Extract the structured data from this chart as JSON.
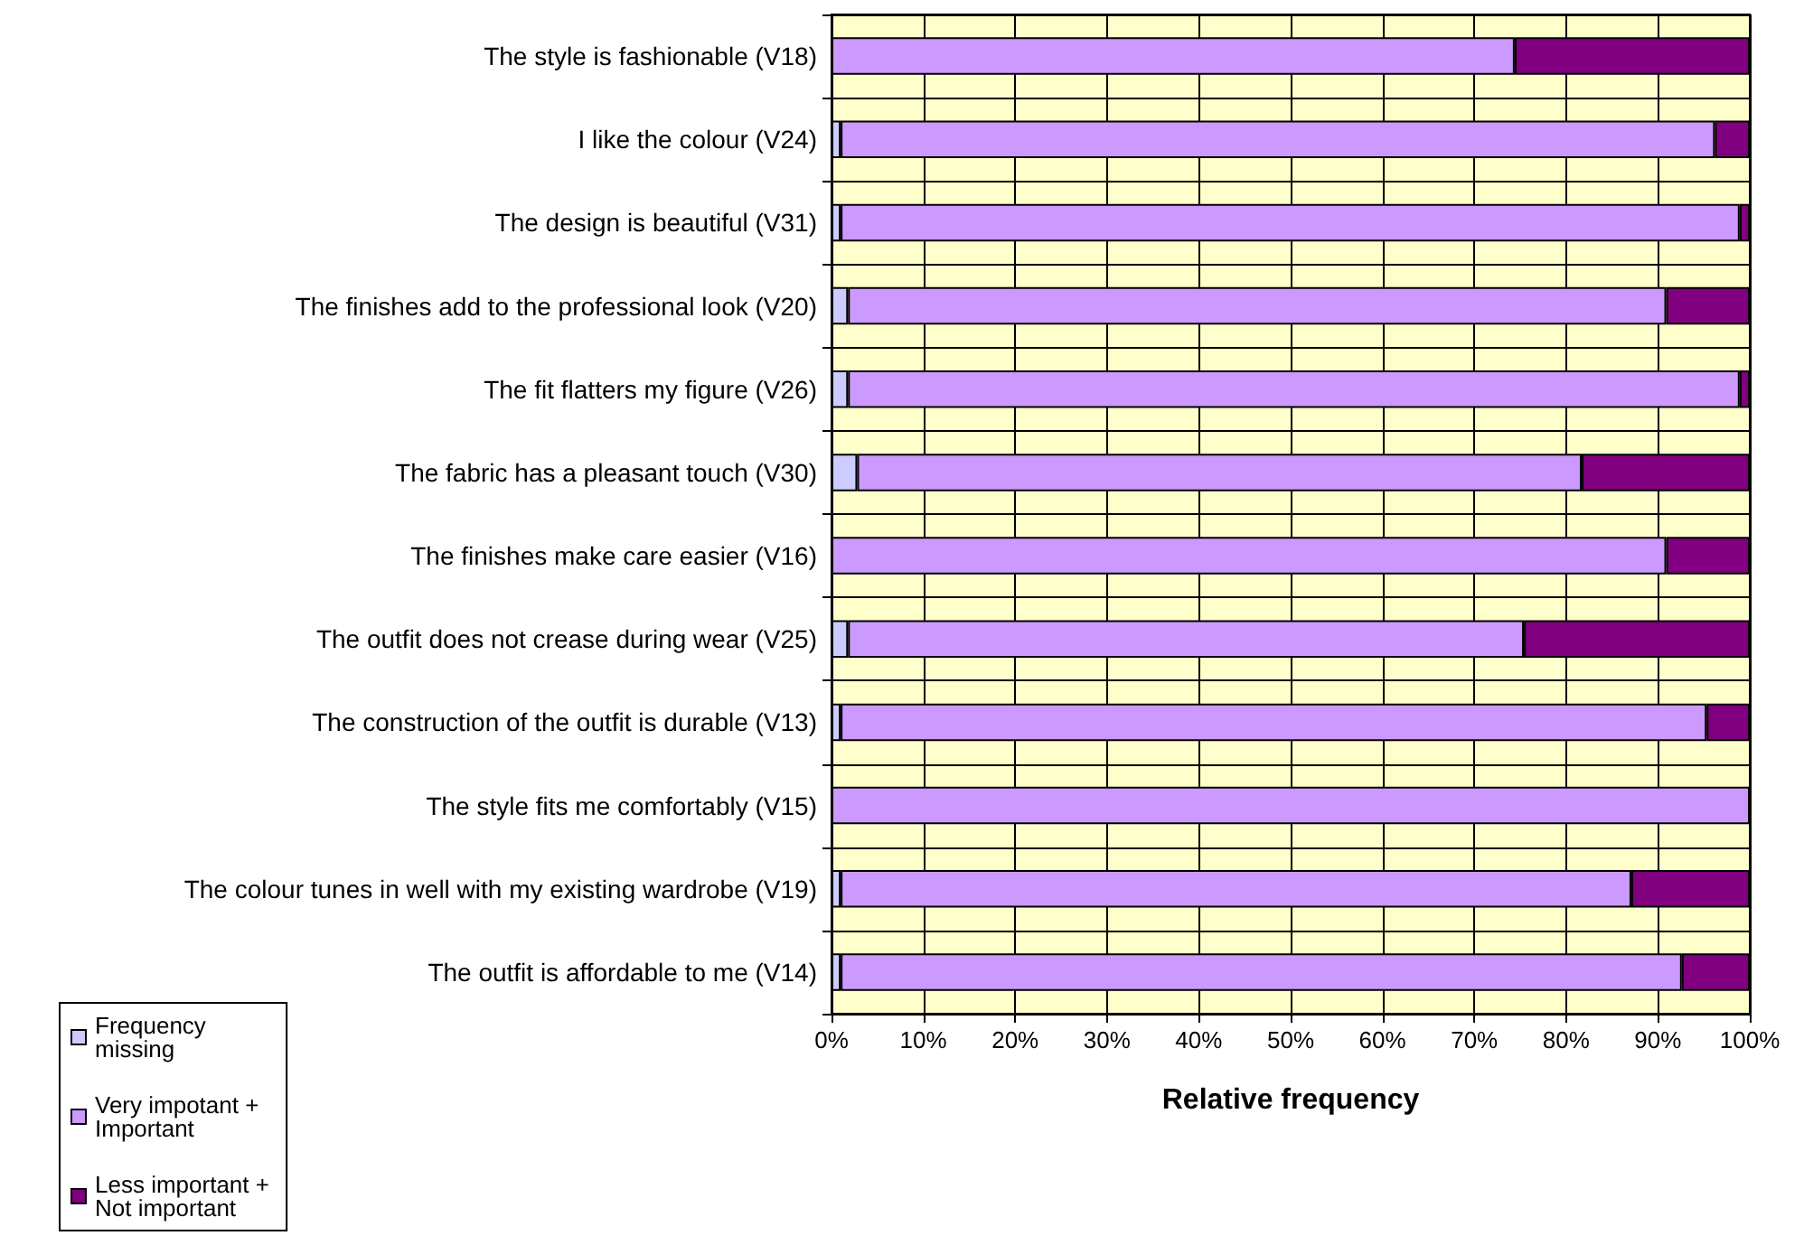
{
  "chart_data": {
    "type": "bar",
    "orientation": "horizontal",
    "stacked": true,
    "xlabel": "Relative frequency",
    "categories": [
      "The style is fashionable (V18)",
      "I like the colour (V24)",
      "The design is beautiful (V31)",
      "The finishes add to the professional look (V20)",
      "The fit flatters my figure (V26)",
      "The fabric has a pleasant touch (V30)",
      "The finishes make care easier (V16)",
      "The outfit does not crease during wear (V25)",
      "The construction of the outfit is durable (V13)",
      "The style fits me comfortably (V15)",
      "The colour tunes in well with my existing wardrobe (V19)",
      "The outfit is affordable to me (V14)"
    ],
    "series": [
      {
        "name": "Frequency missing",
        "color": "#ccccff",
        "values": [
          0,
          1.0,
          1.0,
          1.8,
          1.8,
          2.8,
          0,
          1.8,
          1.0,
          0,
          1.0,
          1.0
        ]
      },
      {
        "name": "Very impotant + Important",
        "color": "#cc99ff",
        "values": [
          74.4,
          95.2,
          97.9,
          89.1,
          97.1,
          78.9,
          90.9,
          73.6,
          94.3,
          100,
          86.1,
          91.6
        ]
      },
      {
        "name": "Less important + Not important",
        "color": "#800080",
        "values": [
          25.6,
          3.8,
          1.1,
          9.1,
          1.1,
          18.3,
          9.1,
          24.6,
          4.7,
          0,
          12.9,
          7.4
        ]
      }
    ],
    "xlim": [
      0,
      100
    ],
    "xticks": [
      {
        "value": 0,
        "label": "0%"
      },
      {
        "value": 10,
        "label": "10%"
      },
      {
        "value": 20,
        "label": "20%"
      },
      {
        "value": 30,
        "label": "30%"
      },
      {
        "value": 40,
        "label": "40%"
      },
      {
        "value": 50,
        "label": "50%"
      },
      {
        "value": 60,
        "label": "60%"
      },
      {
        "value": 70,
        "label": "70%"
      },
      {
        "value": 80,
        "label": "80%"
      },
      {
        "value": 90,
        "label": "90%"
      },
      {
        "value": 100,
        "label": "100%"
      }
    ],
    "grid": true,
    "legend": "bottom left"
  }
}
